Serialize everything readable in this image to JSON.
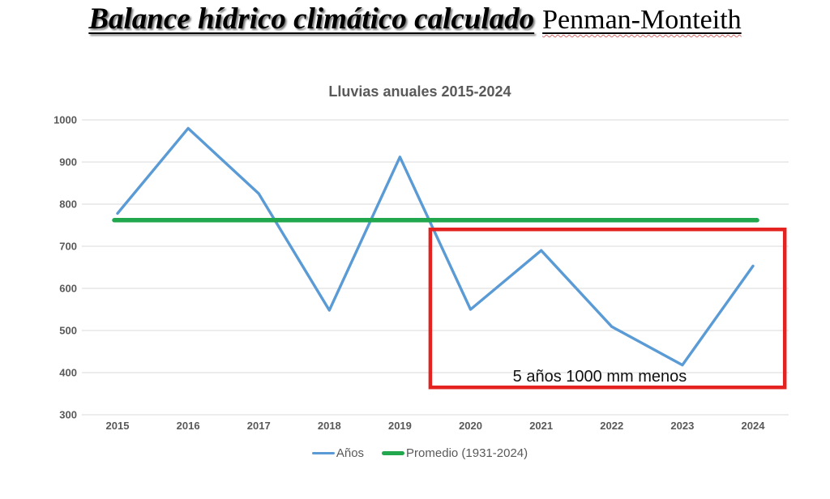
{
  "header": {
    "title_main": "Balance hídrico climático calculado",
    "title_suffix": "Penman-Monteith"
  },
  "colors": {
    "series_blue": "#5b9bd5",
    "average_green": "#21a84e",
    "highlight_red": "#e42320",
    "axis_text": "#595959",
    "gridline": "#d9d9d9",
    "annotation_text": "#111111"
  },
  "chart_data": {
    "type": "line",
    "title": "Lluvias anuales 2015-2024",
    "categories": [
      "2015",
      "2016",
      "2017",
      "2018",
      "2019",
      "2020",
      "2021",
      "2022",
      "2023",
      "2024"
    ],
    "series": [
      {
        "name": "Años",
        "type": "line",
        "color": "#5b9bd5",
        "values": [
          778,
          980,
          825,
          548,
          912,
          550,
          690,
          509,
          418,
          653
        ]
      },
      {
        "name": "Promedio (1931-2024)",
        "type": "constant",
        "color": "#21a84e",
        "value": 762
      }
    ],
    "xlabel": "",
    "ylabel": "",
    "ylim": [
      300,
      1000
    ],
    "yticks": [
      1000,
      900,
      800,
      700,
      600,
      500,
      400,
      300
    ],
    "grid": "horizontal",
    "legend_position": "bottom",
    "annotation": {
      "text": "5 años  1000 mm menos",
      "box_color": "#e42320",
      "box": {
        "year_from": 2019.43,
        "year_to": 2024.45,
        "value_from": 365,
        "value_to": 740
      },
      "text_pos": {
        "year": 2021.83,
        "value_baseline": 379
      }
    }
  }
}
